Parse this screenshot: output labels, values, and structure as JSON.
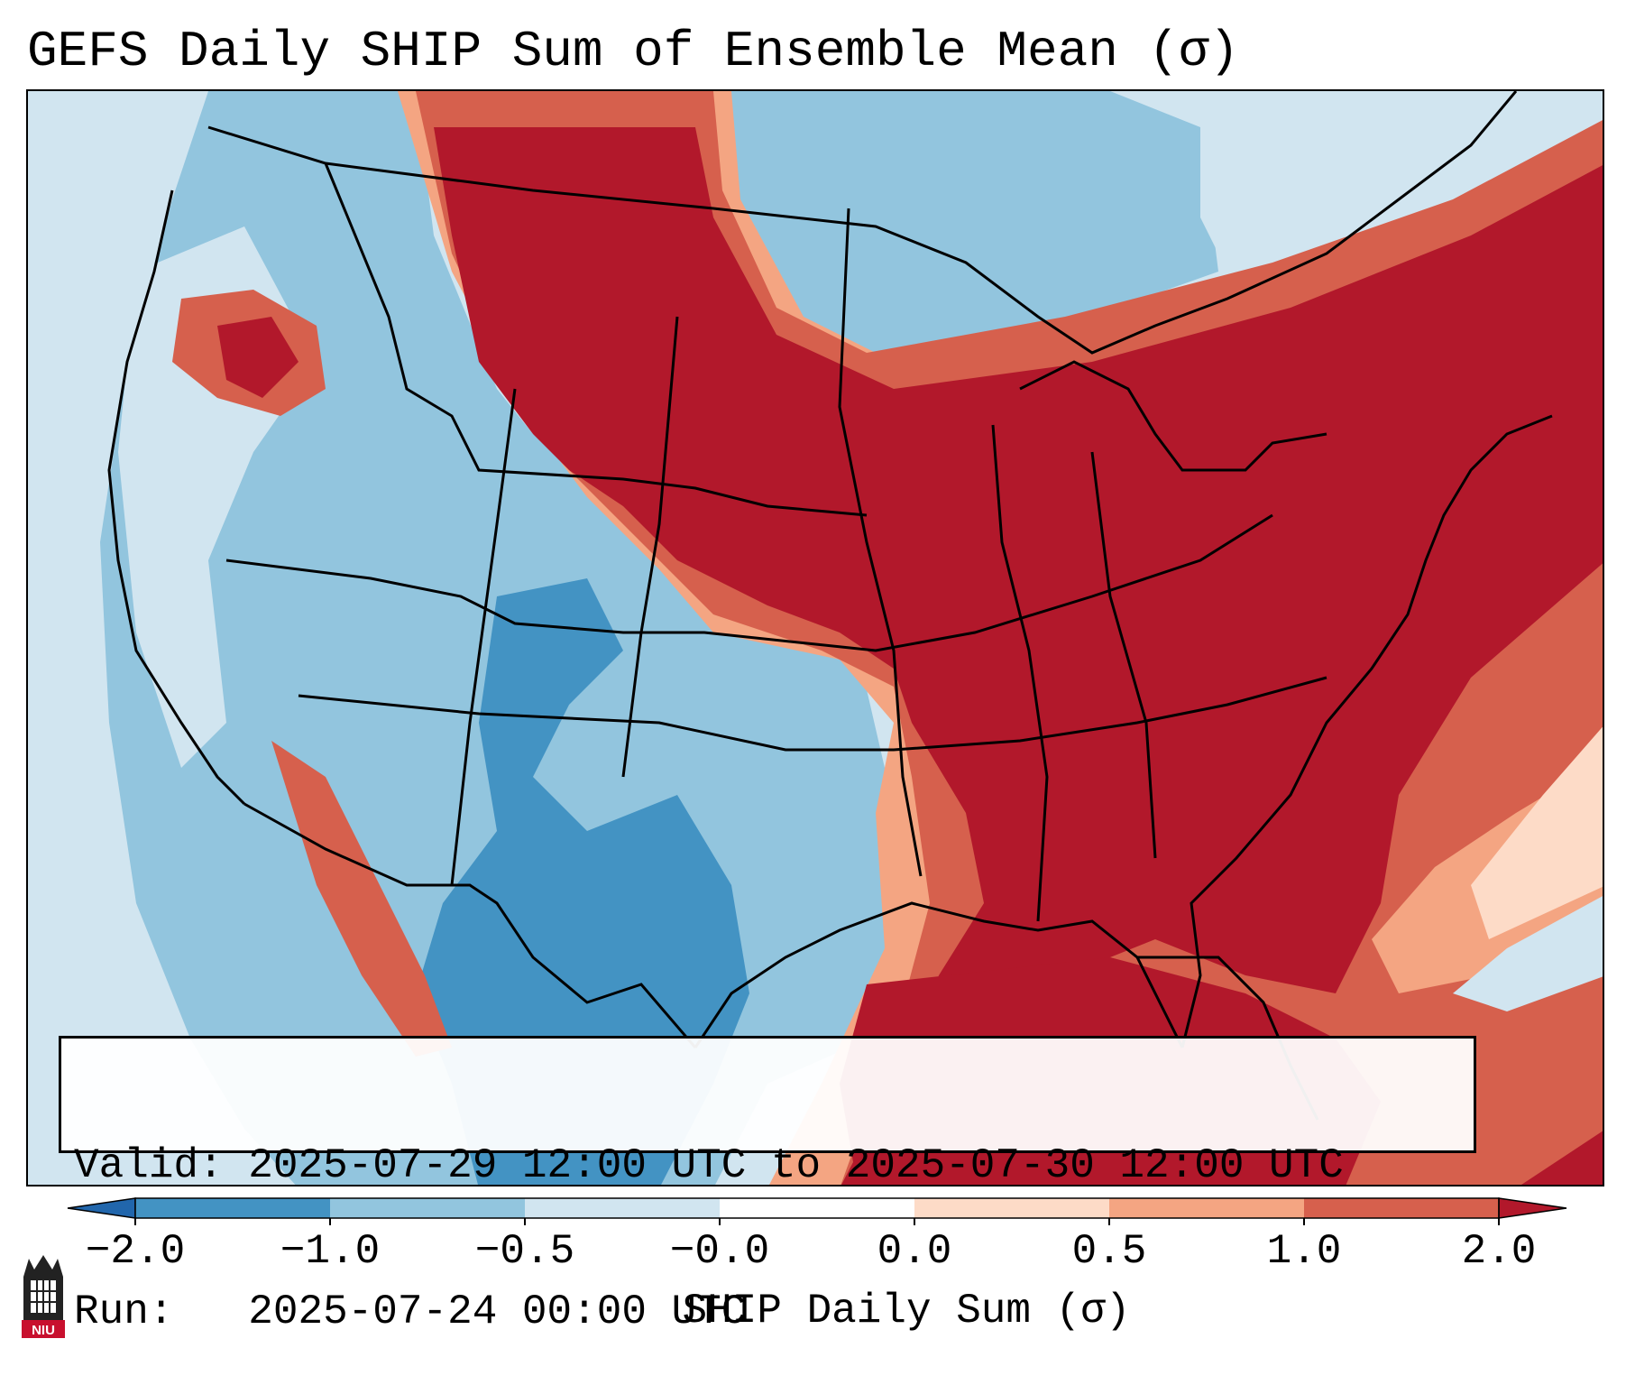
{
  "title": "GEFS Daily SHIP Sum of Ensemble Mean (σ)",
  "info": {
    "valid_label": "Valid:",
    "valid_text": "2025-07-29 12:00 UTC to 2025-07-30 12:00 UTC",
    "run_label": "Run:",
    "run_text": "2025-07-24 00:00 UTC"
  },
  "colorbar": {
    "title": "SHIP Daily Sum (σ)",
    "ticks": [
      "−2.0",
      "−1.0",
      "−0.5",
      "−0.0",
      "0.0",
      "0.5",
      "1.0",
      "2.0"
    ],
    "colors": [
      "#4393c3",
      "#92c5de",
      "#d1e5f0",
      "#ffffff",
      "#fddbc7",
      "#f4a582",
      "#d6604d",
      "#b2182b"
    ],
    "under_color": "#2166ac",
    "over_color": "#b2182b"
  },
  "logo": {
    "text": "NIU"
  }
}
